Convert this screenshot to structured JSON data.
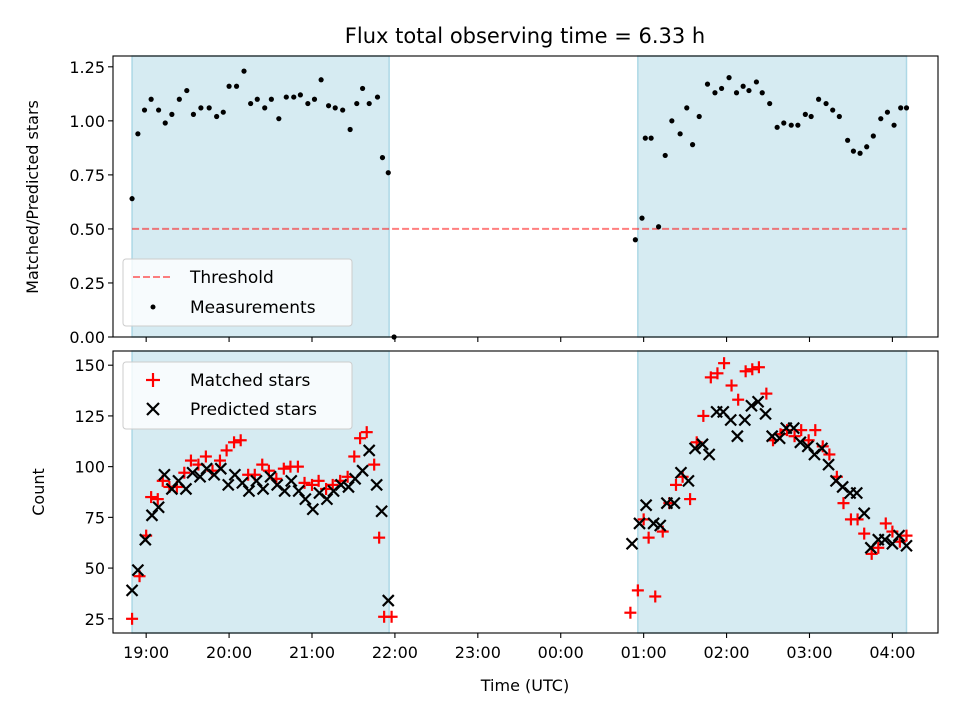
{
  "chart_data": [
    {
      "type": "scatter",
      "title": "Flux total observing time = 6.33 h",
      "xlabel": "",
      "ylabel": "Matched/Predicted stars",
      "ylim": [
        0,
        1.3
      ],
      "yticks": [
        "0.00",
        "0.25",
        "0.50",
        "0.75",
        "1.00",
        "1.25"
      ],
      "xlim": [
        18.6,
        28.55
      ],
      "shaded_intervals": [
        [
          18.83,
          21.93
        ],
        [
          24.93,
          28.17
        ]
      ],
      "shade_color": "#add8e6",
      "threshold": {
        "name": "Threshold",
        "value": 0.5,
        "x_range": [
          18.83,
          28.17
        ],
        "color": "#ff0000"
      },
      "legend": {
        "position": "lower-left",
        "entries": [
          "Threshold",
          "Measurements"
        ]
      },
      "series": [
        {
          "name": "Measurements",
          "marker": "dot",
          "color": "#000000",
          "x": [
            18.83,
            18.9,
            18.98,
            19.06,
            19.15,
            19.23,
            19.31,
            19.4,
            19.49,
            19.57,
            19.66,
            19.76,
            19.85,
            19.93,
            20.0,
            20.09,
            20.18,
            20.26,
            20.34,
            20.43,
            20.51,
            20.6,
            20.69,
            20.78,
            20.86,
            20.95,
            21.03,
            21.11,
            21.2,
            21.28,
            21.37,
            21.46,
            21.54,
            21.61,
            21.69,
            21.79,
            21.85,
            21.92,
            21.99,
            24.9,
            24.98,
            25.02,
            25.09,
            25.18,
            25.26,
            25.34,
            25.44,
            25.52,
            25.59,
            25.67,
            25.77,
            25.86,
            25.94,
            26.03,
            26.12,
            26.2,
            26.27,
            26.36,
            26.43,
            26.52,
            26.61,
            26.69,
            26.78,
            26.86,
            26.95,
            27.02,
            27.11,
            27.2,
            27.28,
            27.36,
            27.46,
            27.53,
            27.61,
            27.69,
            27.77,
            27.86,
            27.94,
            28.02,
            28.1,
            28.17
          ],
          "y": [
            0.64,
            0.94,
            1.05,
            1.1,
            1.05,
            0.99,
            1.03,
            1.1,
            1.14,
            1.03,
            1.06,
            1.06,
            1.02,
            1.04,
            1.16,
            1.16,
            1.23,
            1.08,
            1.1,
            1.06,
            1.1,
            1.01,
            1.11,
            1.11,
            1.12,
            1.08,
            1.1,
            1.19,
            1.07,
            1.06,
            1.05,
            0.96,
            1.08,
            1.15,
            1.08,
            1.11,
            0.83,
            0.76,
            0.0,
            0.45,
            0.55,
            0.92,
            0.92,
            0.51,
            0.84,
            1.0,
            0.94,
            1.06,
            0.89,
            1.02,
            1.17,
            1.13,
            1.15,
            1.2,
            1.13,
            1.16,
            1.14,
            1.18,
            1.13,
            1.08,
            0.97,
            0.99,
            0.98,
            0.98,
            1.03,
            1.02,
            1.1,
            1.08,
            1.05,
            1.02,
            0.91,
            0.86,
            0.85,
            0.88,
            0.93,
            1.01,
            1.04,
            0.98,
            1.06,
            1.06
          ]
        }
      ]
    },
    {
      "type": "scatter",
      "title": "",
      "xlabel": "Time (UTC)",
      "ylabel": "Count",
      "ylim": [
        18,
        157
      ],
      "yticks": [
        "25",
        "50",
        "75",
        "100",
        "125",
        "150"
      ],
      "xlim": [
        18.6,
        28.55
      ],
      "xticks": [
        "19:00",
        "20:00",
        "21:00",
        "22:00",
        "23:00",
        "00:00",
        "01:00",
        "02:00",
        "03:00",
        "04:00"
      ],
      "shaded_intervals": [
        [
          18.83,
          21.93
        ],
        [
          24.93,
          28.17
        ]
      ],
      "shade_color": "#add8e6",
      "legend": {
        "position": "upper-left",
        "entries": [
          "Matched stars",
          "Predicted stars"
        ]
      },
      "series": [
        {
          "name": "Matched stars",
          "marker": "plus",
          "color": "#ff0000",
          "x": [
            18.83,
            18.92,
            19.0,
            19.06,
            19.14,
            19.2,
            19.28,
            19.37,
            19.46,
            19.54,
            19.63,
            19.72,
            19.8,
            19.89,
            19.97,
            20.06,
            20.14,
            20.23,
            20.31,
            20.4,
            20.48,
            20.57,
            20.66,
            20.74,
            20.83,
            20.91,
            21.0,
            21.08,
            21.17,
            21.25,
            21.34,
            21.43,
            21.51,
            21.58,
            21.66,
            21.75,
            21.81,
            21.87,
            21.96,
            24.84,
            24.93,
            25.0,
            25.06,
            25.14,
            25.23,
            25.31,
            25.39,
            25.47,
            25.56,
            25.64,
            25.72,
            25.81,
            25.89,
            25.97,
            26.06,
            26.14,
            26.23,
            26.31,
            26.39,
            26.48,
            26.56,
            26.65,
            26.73,
            26.82,
            26.9,
            26.99,
            27.07,
            27.16,
            27.24,
            27.33,
            27.41,
            27.5,
            27.58,
            27.66,
            27.75,
            27.83,
            27.92,
            28.0,
            28.09,
            28.17
          ],
          "y": [
            25,
            46,
            66,
            85,
            84,
            93,
            90,
            90,
            97,
            103,
            101,
            105,
            98,
            103,
            108,
            112,
            113,
            96,
            96,
            101,
            98,
            94,
            99,
            100,
            100,
            92,
            91,
            93,
            89,
            91,
            93,
            95,
            105,
            114,
            117,
            101,
            65,
            26,
            26,
            28,
            39,
            74,
            65,
            36,
            68,
            82,
            91,
            95,
            84,
            112,
            125,
            144,
            146,
            151,
            140,
            133,
            147,
            148,
            149,
            136,
            113,
            116,
            118,
            115,
            118,
            113,
            118,
            110,
            106,
            95,
            82,
            74,
            74,
            67,
            57,
            60,
            72,
            68,
            63,
            66
          ]
        },
        {
          "name": "Predicted stars",
          "marker": "x",
          "color": "#000000",
          "x": [
            18.83,
            18.9,
            18.99,
            19.07,
            19.15,
            19.22,
            19.31,
            19.39,
            19.48,
            19.56,
            19.65,
            19.73,
            19.82,
            19.9,
            19.99,
            20.07,
            20.16,
            20.24,
            20.33,
            20.41,
            20.5,
            20.58,
            20.67,
            20.75,
            20.84,
            20.92,
            21.01,
            21.09,
            21.18,
            21.26,
            21.35,
            21.44,
            21.52,
            21.61,
            21.69,
            21.78,
            21.84,
            21.92,
            24.86,
            24.95,
            25.03,
            25.12,
            25.2,
            25.28,
            25.37,
            25.45,
            25.54,
            25.62,
            25.71,
            25.79,
            25.88,
            25.96,
            26.05,
            26.13,
            26.22,
            26.3,
            26.38,
            26.47,
            26.55,
            26.64,
            26.72,
            26.81,
            26.89,
            26.98,
            27.06,
            27.15,
            27.23,
            27.32,
            27.4,
            27.49,
            27.57,
            27.66,
            27.74,
            27.83,
            27.91,
            28.0,
            28.08,
            28.17
          ],
          "y": [
            39,
            49,
            64,
            76,
            80,
            96,
            89,
            93,
            89,
            97,
            95,
            99,
            96,
            99,
            91,
            96,
            92,
            88,
            93,
            89,
            95,
            91,
            88,
            93,
            88,
            84,
            79,
            87,
            84,
            88,
            91,
            90,
            94,
            98,
            108,
            91,
            78,
            34,
            62,
            72,
            81,
            72,
            71,
            82,
            82,
            97,
            93,
            109,
            111,
            106,
            127,
            127,
            123,
            115,
            123,
            130,
            132,
            126,
            115,
            114,
            119,
            119,
            112,
            110,
            106,
            109,
            101,
            93,
            90,
            87,
            87,
            77,
            60,
            64,
            64,
            62,
            66,
            61
          ]
        }
      ]
    }
  ]
}
